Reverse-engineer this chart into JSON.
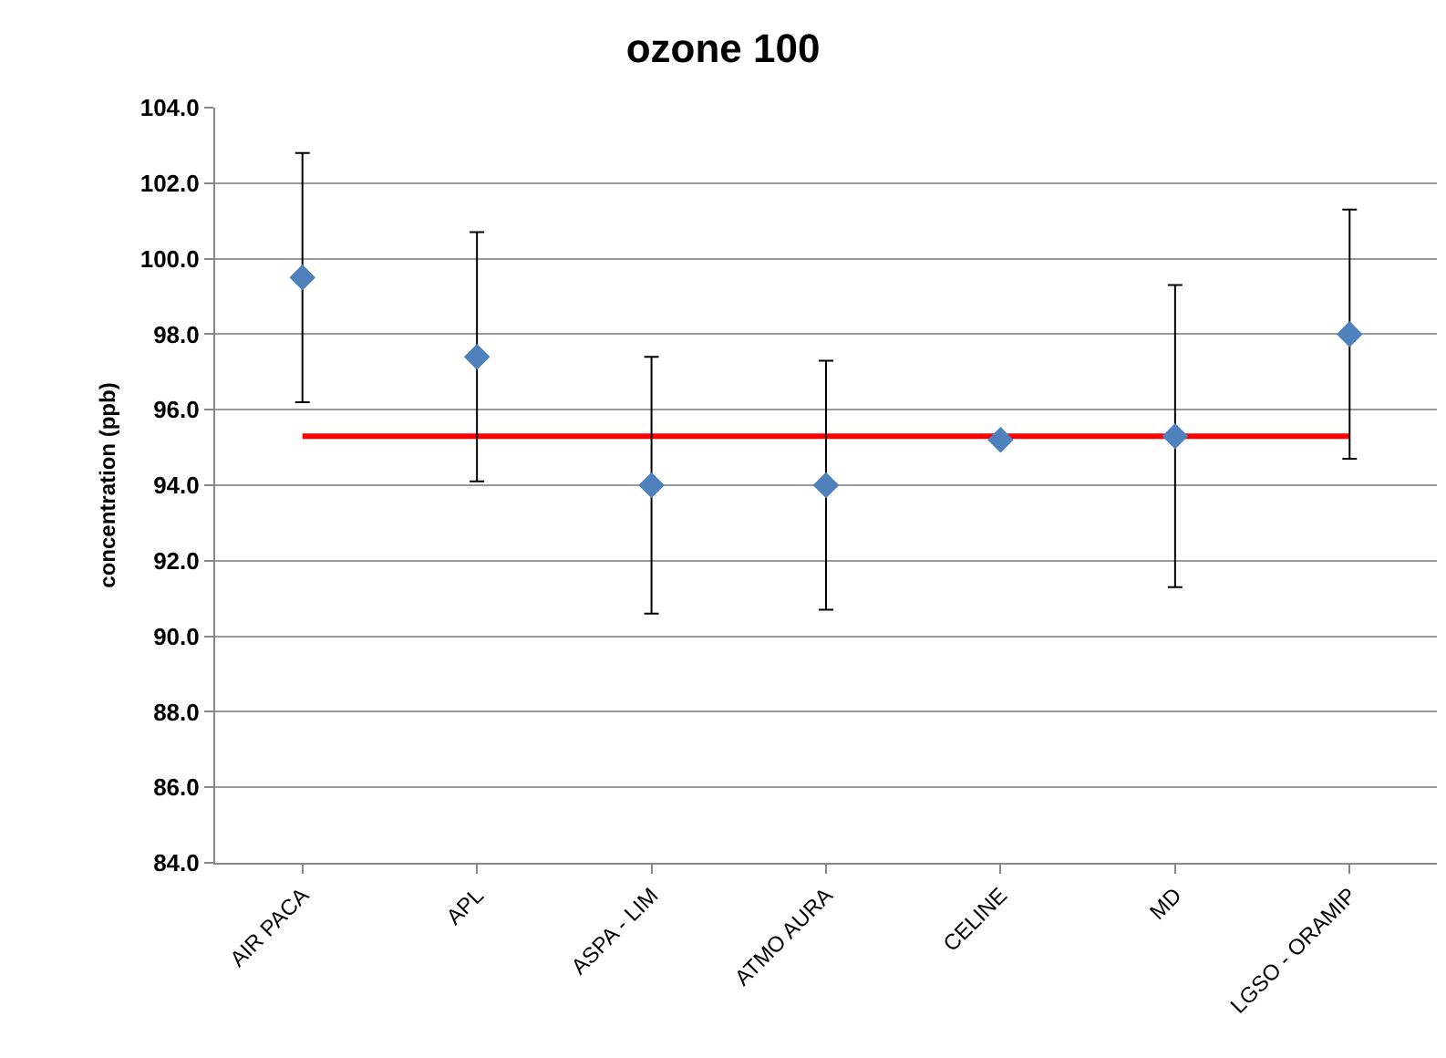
{
  "chart_data": {
    "type": "scatter",
    "title": "ozone 100",
    "ylabel": "concentration (ppb)",
    "categories": [
      "AIR PACA",
      "APL",
      "ASPA - LIM",
      "ATMO AURA",
      "CELINE",
      "MD",
      "LGSO - ORAMIP"
    ],
    "series": [
      {
        "type": "line",
        "color": "#ff0000",
        "values": [
          95.3,
          95.3,
          95.3,
          95.3,
          95.3,
          95.3,
          95.3
        ],
        "marker": "none"
      },
      {
        "color": "#4f81bd",
        "values": [
          99.5,
          97.4,
          94.0,
          94.0,
          95.2,
          95.3,
          98.0
        ],
        "errors": [
          3.3,
          3.3,
          3.4,
          3.3,
          null,
          4.0,
          3.3
        ],
        "marker": "diamond"
      }
    ],
    "ylim": [
      84,
      104
    ],
    "yticks": [
      {
        "value": 84,
        "label": "84.0"
      },
      {
        "value": 86,
        "label": "86.0"
      },
      {
        "value": 88,
        "label": "88.0"
      },
      {
        "value": 90,
        "label": "90.0"
      },
      {
        "value": 92,
        "label": "92.0"
      },
      {
        "value": 94,
        "label": "94.0"
      },
      {
        "value": 96,
        "label": "96.0"
      },
      {
        "value": 98,
        "label": "98.0"
      },
      {
        "value": 100,
        "label": "100.0"
      },
      {
        "value": 102,
        "label": "102.0"
      },
      {
        "value": 104,
        "label": "104.0"
      }
    ],
    "grid": "y",
    "legend": false
  }
}
